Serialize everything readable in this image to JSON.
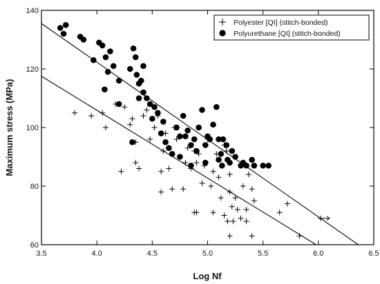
{
  "chart_data": {
    "type": "scatter",
    "title": "",
    "xlabel": "Log Nf",
    "ylabel": "Maximum stress (MPa)",
    "xlim": [
      3.5,
      6.5
    ],
    "ylim": [
      60,
      140
    ],
    "xticks": [
      3.5,
      4.0,
      4.5,
      5.0,
      5.5,
      6.0,
      6.5
    ],
    "yticks": [
      60,
      80,
      100,
      120,
      140
    ],
    "xtick_labels": [
      "3.5",
      "4.0",
      "4.5",
      "5.0",
      "5.5",
      "6.0",
      "6.5"
    ],
    "ytick_labels": [
      "60",
      "80",
      "100",
      "120",
      "140"
    ],
    "grid": false,
    "legend_position": "top-right",
    "series": [
      {
        "name": "Polyester [QI] (stitch-bonded)",
        "marker": "plus",
        "color": "#000000",
        "points": [
          [
            3.8,
            105
          ],
          [
            3.95,
            104
          ],
          [
            4.05,
            105
          ],
          [
            4.08,
            100
          ],
          [
            4.17,
            108
          ],
          [
            4.2,
            108
          ],
          [
            4.25,
            107
          ],
          [
            4.22,
            85
          ],
          [
            4.3,
            101
          ],
          [
            4.32,
            103
          ],
          [
            4.35,
            88
          ],
          [
            4.38,
            86
          ],
          [
            4.35,
            95
          ],
          [
            4.42,
            104
          ],
          [
            4.45,
            106
          ],
          [
            4.48,
            96
          ],
          [
            4.5,
            103
          ],
          [
            4.52,
            100
          ],
          [
            4.55,
            104
          ],
          [
            4.58,
            85
          ],
          [
            4.6,
            92
          ],
          [
            4.62,
            98
          ],
          [
            4.65,
            86
          ],
          [
            4.68,
            91
          ],
          [
            4.7,
            100
          ],
          [
            4.72,
            96
          ],
          [
            4.75,
            90
          ],
          [
            4.78,
            79
          ],
          [
            4.8,
            88
          ],
          [
            4.82,
            93
          ],
          [
            4.85,
            86
          ],
          [
            4.88,
            92
          ],
          [
            4.9,
            88
          ],
          [
            4.92,
            91
          ],
          [
            4.95,
            81
          ],
          [
            4.97,
            87
          ],
          [
            5.0,
            96
          ],
          [
            5.03,
            80
          ],
          [
            5.05,
            85
          ],
          [
            5.08,
            91
          ],
          [
            5.1,
            83
          ],
          [
            5.12,
            76
          ],
          [
            5.15,
            94
          ],
          [
            5.17,
            92
          ],
          [
            5.2,
            84
          ],
          [
            5.2,
            78
          ],
          [
            5.22,
            73
          ],
          [
            5.25,
            76
          ],
          [
            5.27,
            72
          ],
          [
            5.3,
            69
          ],
          [
            5.32,
            80
          ],
          [
            5.35,
            72
          ],
          [
            5.37,
            84
          ],
          [
            5.4,
            79
          ],
          [
            5.42,
            75
          ],
          [
            4.58,
            78
          ],
          [
            4.68,
            79
          ],
          [
            4.88,
            71
          ],
          [
            4.9,
            71
          ],
          [
            5.05,
            71
          ],
          [
            5.15,
            70
          ],
          [
            5.18,
            68
          ],
          [
            5.23,
            68
          ],
          [
            5.2,
            63
          ],
          [
            5.35,
            68
          ],
          [
            5.65,
            71
          ],
          [
            5.72,
            74
          ],
          [
            5.83,
            63
          ],
          [
            6.02,
            69
          ],
          [
            5.4,
            63
          ]
        ]
      },
      {
        "name": "Polyurethane [QI] (stitch-bonded)",
        "marker": "filled-circle",
        "color": "#000000",
        "points": [
          [
            3.67,
            134
          ],
          [
            3.7,
            132
          ],
          [
            3.72,
            135
          ],
          [
            3.85,
            131
          ],
          [
            3.88,
            130
          ],
          [
            3.97,
            123
          ],
          [
            4.02,
            129
          ],
          [
            4.05,
            128
          ],
          [
            4.08,
            124
          ],
          [
            4.1,
            119
          ],
          [
            4.12,
            126
          ],
          [
            4.15,
            121
          ],
          [
            4.2,
            116
          ],
          [
            4.3,
            120
          ],
          [
            4.33,
            127
          ],
          [
            4.35,
            124
          ],
          [
            4.36,
            118
          ],
          [
            4.38,
            115
          ],
          [
            4.38,
            110
          ],
          [
            4.4,
            116
          ],
          [
            4.42,
            112
          ],
          [
            4.42,
            121
          ],
          [
            4.45,
            110
          ],
          [
            4.48,
            108
          ],
          [
            4.5,
            103
          ],
          [
            4.52,
            107
          ],
          [
            4.55,
            105
          ],
          [
            4.58,
            98
          ],
          [
            4.6,
            102
          ],
          [
            4.62,
            95
          ],
          [
            4.65,
            93
          ],
          [
            4.68,
            91
          ],
          [
            4.72,
            100
          ],
          [
            4.75,
            97
          ],
          [
            4.78,
            104
          ],
          [
            4.8,
            97
          ],
          [
            4.82,
            99
          ],
          [
            4.85,
            94
          ],
          [
            4.88,
            96
          ],
          [
            4.9,
            92
          ],
          [
            4.92,
            100
          ],
          [
            4.95,
            106
          ],
          [
            4.98,
            94
          ],
          [
            5.0,
            97
          ],
          [
            5.02,
            96
          ],
          [
            5.05,
            101
          ],
          [
            5.08,
            107
          ],
          [
            5.1,
            96
          ],
          [
            5.1,
            89
          ],
          [
            5.12,
            91
          ],
          [
            5.14,
            96
          ],
          [
            5.17,
            94
          ],
          [
            5.2,
            88
          ],
          [
            5.22,
            92
          ],
          [
            5.25,
            90
          ],
          [
            5.3,
            87
          ],
          [
            5.32,
            88
          ],
          [
            5.35,
            87
          ],
          [
            5.4,
            89
          ],
          [
            5.42,
            87
          ],
          [
            5.5,
            87
          ],
          [
            5.55,
            87
          ],
          [
            4.07,
            113
          ],
          [
            4.2,
            108
          ],
          [
            4.32,
            95
          ],
          [
            4.75,
            90
          ],
          [
            4.85,
            87
          ],
          [
            5.13,
            87
          ],
          [
            5.18,
            89
          ],
          [
            4.98,
            88
          ]
        ]
      }
    ],
    "fit_lines": [
      {
        "from": [
          3.5,
          135.5
        ],
        "to": [
          6.36,
          60
        ]
      },
      {
        "from": [
          3.5,
          117.5
        ],
        "to": [
          5.98,
          60
        ]
      }
    ],
    "annotations": [
      {
        "type": "runout-arrow",
        "from": [
          6.04,
          69
        ],
        "to": [
          6.1,
          69
        ]
      }
    ]
  }
}
